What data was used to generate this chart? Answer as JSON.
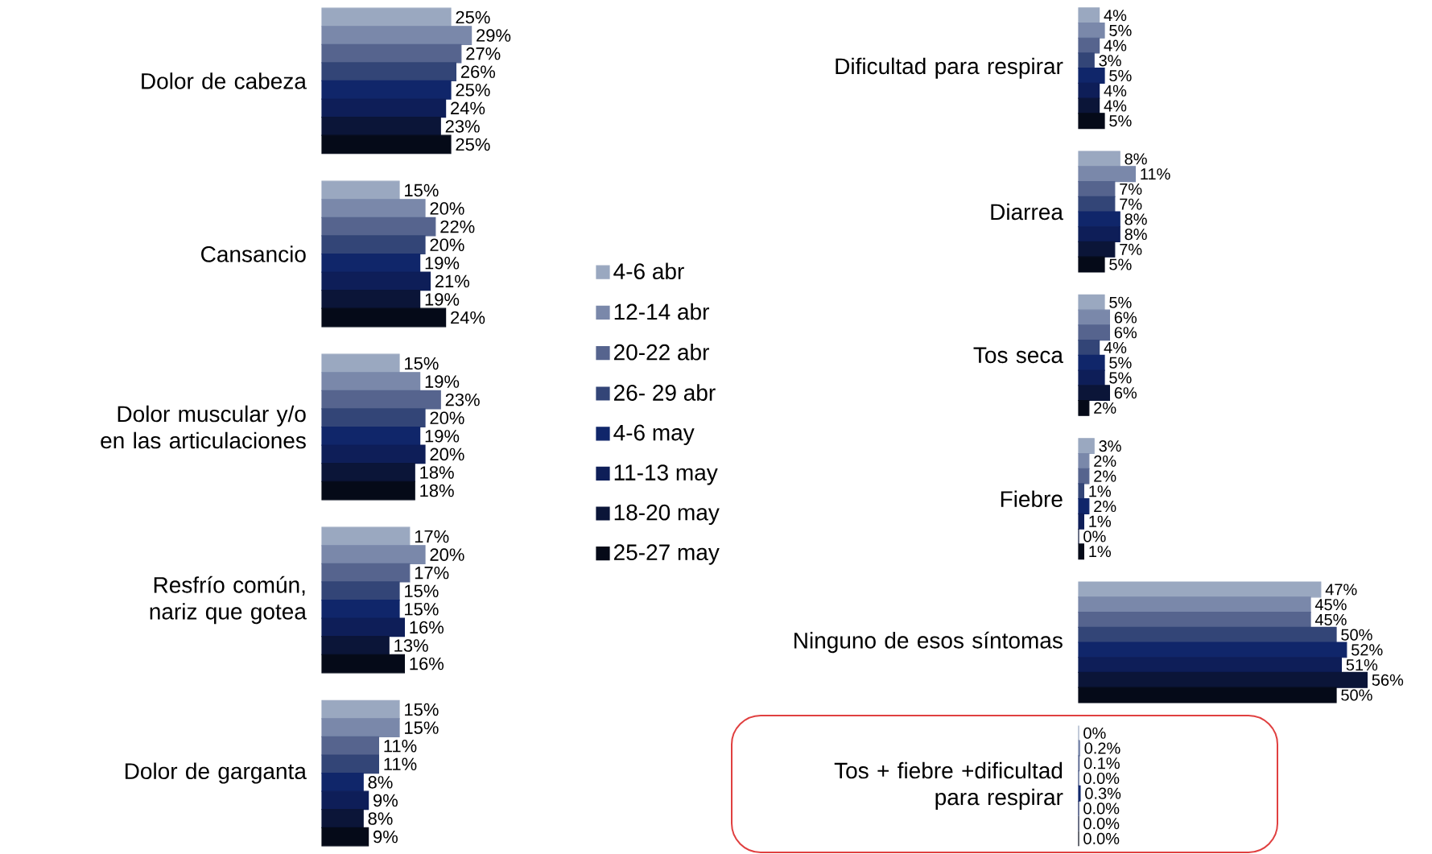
{
  "chart_data": [
    {
      "type": "bar",
      "orientation": "horizontal",
      "legend": "right",
      "tick_labels": "y",
      "categories": [
        "Dolor de cabeza",
        "Cansancio",
        "Dolor muscular y/o en las articulaciones",
        "Resfrío común, nariz que gotea",
        "Dolor de garganta"
      ],
      "series": [
        {
          "name": "4-6 abr",
          "color": "#9aa8c0",
          "values": [
            25,
            15,
            15,
            17,
            15
          ],
          "value_labels": [
            "25%",
            "15%",
            "15%",
            "17%",
            "15%"
          ]
        },
        {
          "name": "12-14 abr",
          "color": "#7a88aa",
          "values": [
            29,
            20,
            19,
            20,
            15
          ],
          "value_labels": [
            "29%",
            "20%",
            "19%",
            "20%",
            "15%"
          ]
        },
        {
          "name": "20-22 abr",
          "color": "#56648e",
          "values": [
            27,
            22,
            23,
            17,
            11
          ],
          "value_labels": [
            "27%",
            "22%",
            "23%",
            "17%",
            "11%"
          ]
        },
        {
          "name": "26- 29 abr",
          "color": "#334577",
          "values": [
            26,
            20,
            20,
            15,
            11
          ],
          "value_labels": [
            "26%",
            "20%",
            "20%",
            "15%",
            "11%"
          ]
        },
        {
          "name": "4-6 may",
          "color": "#10266a",
          "values": [
            25,
            19,
            19,
            15,
            8
          ],
          "value_labels": [
            "25%",
            "19%",
            "19%",
            "15%",
            "8%"
          ]
        },
        {
          "name": "11-13 may",
          "color": "#0e1e58",
          "values": [
            24,
            21,
            20,
            16,
            9
          ],
          "value_labels": [
            "24%",
            "21%",
            "20%",
            "16%",
            "9%"
          ]
        },
        {
          "name": "18-20 may",
          "color": "#0b1538",
          "values": [
            23,
            19,
            18,
            13,
            8
          ],
          "value_labels": [
            "23%",
            "19%",
            "18%",
            "13%",
            "8%"
          ]
        },
        {
          "name": "25-27 may",
          "color": "#050a18",
          "values": [
            25,
            24,
            18,
            16,
            9
          ],
          "value_labels": [
            "25%",
            "24%",
            "18%",
            "16%",
            "9%"
          ]
        }
      ]
    },
    {
      "type": "bar",
      "orientation": "horizontal",
      "tick_labels": "y",
      "categories": [
        "Dificultad para respirar",
        "Diarrea",
        "Tos seca",
        "Fiebre",
        "Ninguno de esos síntomas",
        "Tos + fiebre +dificultad para respirar"
      ],
      "series": [
        {
          "color": "#9aa8c0",
          "values": [
            4,
            8,
            5,
            3,
            47,
            0
          ],
          "value_labels": [
            "4%",
            "8%",
            "5%",
            "3%",
            "47%",
            "0%"
          ]
        },
        {
          "color": "#7a88aa",
          "values": [
            5,
            11,
            6,
            2,
            45,
            0.2
          ],
          "value_labels": [
            "5%",
            "11%",
            "6%",
            "2%",
            "45%",
            "0.2%"
          ]
        },
        {
          "color": "#56648e",
          "values": [
            4,
            7,
            6,
            2,
            45,
            0.1
          ],
          "value_labels": [
            "4%",
            "7%",
            "6%",
            "2%",
            "45%",
            "0.1%"
          ]
        },
        {
          "color": "#334577",
          "values": [
            3,
            7,
            4,
            1,
            50,
            0.0
          ],
          "value_labels": [
            "3%",
            "7%",
            "4%",
            "1%",
            "50%",
            "0.0%"
          ]
        },
        {
          "color": "#10266a",
          "values": [
            5,
            8,
            5,
            2,
            52,
            0.3
          ],
          "value_labels": [
            "5%",
            "8%",
            "5%",
            "2%",
            "52%",
            "0.3%"
          ]
        },
        {
          "color": "#0e1e58",
          "values": [
            4,
            8,
            5,
            1,
            51,
            0.0
          ],
          "value_labels": [
            "4%",
            "8%",
            "5%",
            "1%",
            "51%",
            "0.0%"
          ]
        },
        {
          "color": "#0b1538",
          "values": [
            4,
            7,
            6,
            0,
            56,
            0.0
          ],
          "value_labels": [
            "4%",
            "7%",
            "6%",
            "0%",
            "56%",
            "0.0%"
          ]
        },
        {
          "color": "#050a18",
          "values": [
            5,
            5,
            2,
            1,
            50,
            0.0
          ],
          "value_labels": [
            "5%",
            "5%",
            "2%",
            "1%",
            "50%",
            "0.0%"
          ]
        }
      ]
    }
  ]
}
